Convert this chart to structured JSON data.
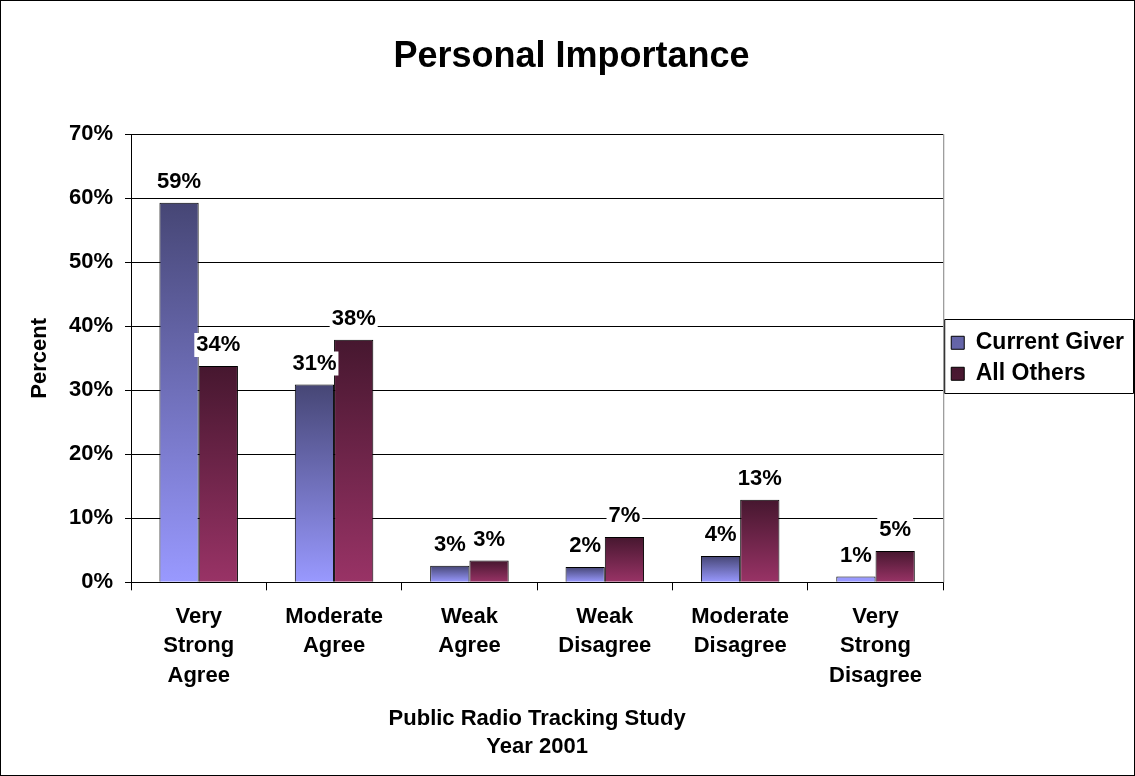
{
  "chart_data": {
    "type": "bar",
    "title": "Personal Importance",
    "xlabel": "Public Radio Tracking Study\nYear 2001",
    "ylabel": "Percent",
    "categories": [
      "Very Strong Agree",
      "Moderate Agree",
      "Weak Agree",
      "Weak Disagree",
      "Moderate Disagree",
      "Very Strong Disagree"
    ],
    "series": [
      {
        "name": "Current Giver",
        "color": "#9999ff",
        "values": [
          59.3,
          30.9,
          2.6,
          2.4,
          4.1,
          0.9
        ],
        "value_labels": [
          "59%",
          "31%",
          "3%",
          "2%",
          "4%",
          "1%"
        ]
      },
      {
        "name": "All Others",
        "color": "#993366",
        "values": [
          33.8,
          37.9,
          3.4,
          7.1,
          12.9,
          4.9
        ],
        "value_labels": [
          "34%",
          "38%",
          "3%",
          "7%",
          "13%",
          "5%"
        ]
      }
    ],
    "ylim": [
      0,
      70
    ],
    "yticks": [
      {
        "value": 0,
        "label": "0%"
      },
      {
        "value": 10,
        "label": "10%"
      },
      {
        "value": 20,
        "label": "20%"
      },
      {
        "value": 30,
        "label": "30%"
      },
      {
        "value": 40,
        "label": "40%"
      },
      {
        "value": 50,
        "label": "50%"
      },
      {
        "value": 60,
        "label": "60%"
      },
      {
        "value": 70,
        "label": "70%"
      }
    ],
    "grid": "y",
    "legend": "right"
  }
}
